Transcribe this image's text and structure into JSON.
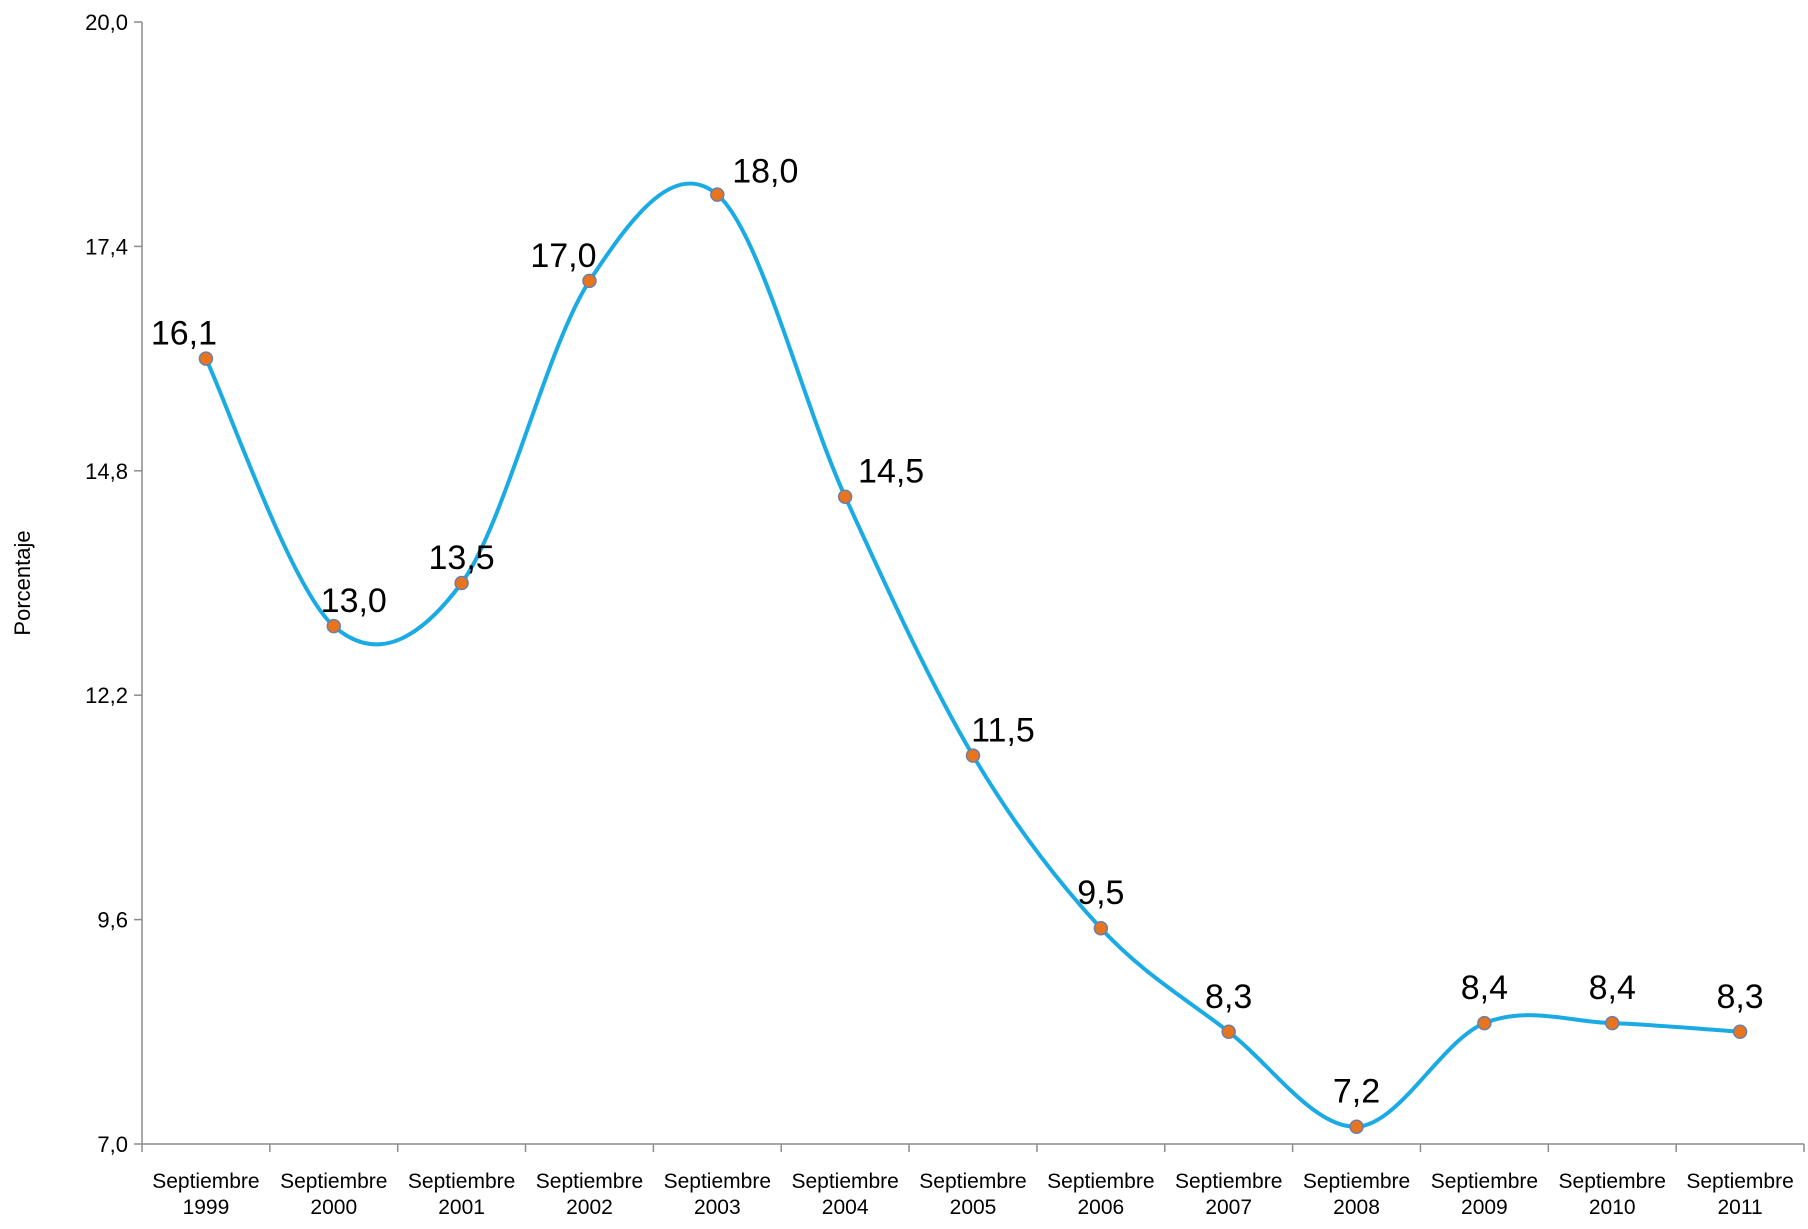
{
  "chart_data": {
    "type": "line",
    "title": "",
    "xlabel": "",
    "ylabel": "Porcentaje",
    "ylim": [
      7.0,
      20.0
    ],
    "yticks": [
      "7,0",
      "9,6",
      "12,2",
      "14,8",
      "17,4",
      "20,0"
    ],
    "ytick_values": [
      7.0,
      9.6,
      12.2,
      14.8,
      17.4,
      20.0
    ],
    "categories": [
      [
        "Septiembre",
        "1999"
      ],
      [
        "Septiembre",
        "2000"
      ],
      [
        "Septiembre",
        "2001"
      ],
      [
        "Septiembre",
        "2002"
      ],
      [
        "Septiembre",
        "2003"
      ],
      [
        "Septiembre",
        "2004"
      ],
      [
        "Septiembre",
        "2005"
      ],
      [
        "Septiembre",
        "2006"
      ],
      [
        "Septiembre",
        "2007"
      ],
      [
        "Septiembre",
        "2008"
      ],
      [
        "Septiembre",
        "2009"
      ],
      [
        "Septiembre",
        "2010"
      ],
      [
        "Septiembre",
        "2011"
      ]
    ],
    "values": [
      16.1,
      13.0,
      13.5,
      17.0,
      18.0,
      14.5,
      11.5,
      9.5,
      8.3,
      7.2,
      8.4,
      8.4,
      8.3
    ],
    "data_labels": [
      "16,1",
      "13,0",
      "13,5",
      "17,0",
      "18,0",
      "14,5",
      "11,5",
      "9,5",
      "8,3",
      "7,2",
      "8,4",
      "8,4",
      "8,3"
    ],
    "grid": false,
    "legend": "none",
    "line_color": "#1aabe4",
    "marker_color": "#e8741e",
    "marker_edge_color": "#6b7fa8"
  }
}
